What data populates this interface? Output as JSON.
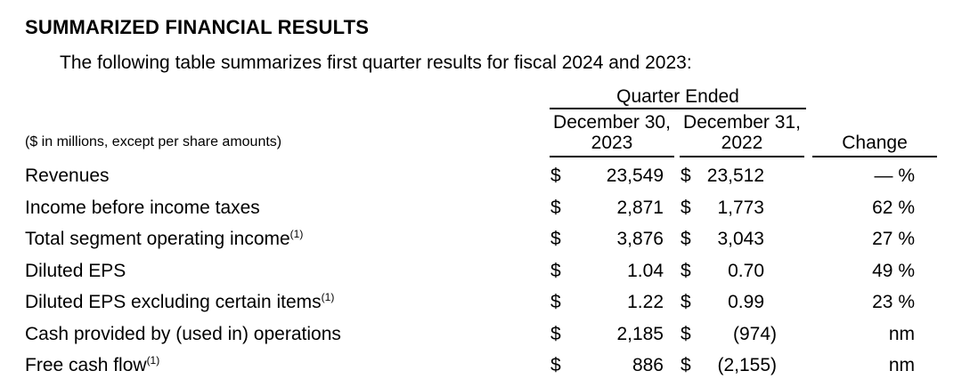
{
  "page": {
    "title": "SUMMARIZED FINANCIAL RESULTS",
    "intro": "The following table summarizes first quarter results for fiscal 2024 and 2023:"
  },
  "table": {
    "group_header": "Quarter Ended",
    "note": "($ in millions, except per share amounts)",
    "currency_symbol": "$",
    "columns": [
      {
        "line1": "December 30,",
        "line2": "2023"
      },
      {
        "line1": "December 31,",
        "line2": "2022"
      }
    ],
    "change_header": "Change",
    "rows": [
      {
        "label": "Revenues",
        "sup": "",
        "q1_2024": "23,549",
        "q1_2023": "23,512",
        "change": "— %"
      },
      {
        "label": "Income before income taxes",
        "sup": "",
        "q1_2024": "2,871",
        "q1_2023": "1,773",
        "change": "62 %"
      },
      {
        "label": "Total segment operating income",
        "sup": "(1)",
        "q1_2024": "3,876",
        "q1_2023": "3,043",
        "change": "27 %"
      },
      {
        "label": "Diluted EPS",
        "sup": "",
        "q1_2024": "1.04",
        "q1_2023": "0.70",
        "change": "49 %"
      },
      {
        "label": "Diluted EPS excluding certain items",
        "sup": "(1)",
        "q1_2024": "1.22",
        "q1_2023": "0.99",
        "change": "23 %"
      },
      {
        "label": "Cash provided by (used in) operations",
        "sup": "",
        "q1_2024": "2,185",
        "q1_2023": "(974)",
        "change": "nm"
      },
      {
        "label": "Free cash flow",
        "sup": "(1)",
        "q1_2024": "886",
        "q1_2023": "(2,155)",
        "change": "nm"
      }
    ]
  }
}
